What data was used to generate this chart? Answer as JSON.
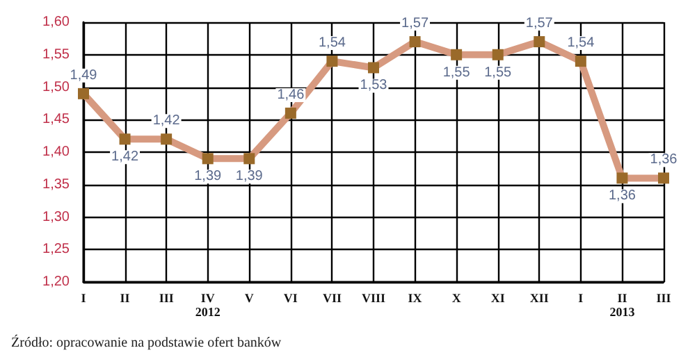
{
  "chart_data": {
    "type": "line",
    "categories": [
      "I",
      "II",
      "III",
      "IV",
      "V",
      "VI",
      "VII",
      "VIII",
      "IX",
      "X",
      "XI",
      "XII",
      "I",
      "II",
      "III"
    ],
    "series": [
      {
        "color": "#d79a80",
        "values": [
          1.49,
          1.42,
          1.42,
          1.39,
          1.39,
          1.46,
          1.54,
          1.53,
          1.57,
          1.55,
          1.55,
          1.57,
          1.54,
          1.36,
          1.36
        ],
        "value_labels": [
          "1,49",
          "1,42",
          "1,42",
          "1,39",
          "1,39",
          "1,46",
          "1,54",
          "1,53",
          "1,57",
          "1,55",
          "1,55",
          "1,57",
          "1,54",
          "1,36",
          "1,36"
        ]
      }
    ],
    "ylim": [
      1.2,
      1.6
    ],
    "yticks": [
      {
        "value": 1.2,
        "label": "1,20"
      },
      {
        "value": 1.25,
        "label": "1,25"
      },
      {
        "value": 1.3,
        "label": "1,30"
      },
      {
        "value": 1.35,
        "label": "1,35"
      },
      {
        "value": 1.4,
        "label": "1,40"
      },
      {
        "value": 1.45,
        "label": "1,45"
      },
      {
        "value": 1.5,
        "label": "1,50"
      },
      {
        "value": 1.55,
        "label": "1,55"
      },
      {
        "value": 1.6,
        "label": "1,60"
      }
    ],
    "grid": true,
    "marker": "square",
    "line_style": "solid",
    "annotations": [
      "2012",
      "2013",
      "Źródło: opracowanie na podstawie ofert banków"
    ]
  }
}
